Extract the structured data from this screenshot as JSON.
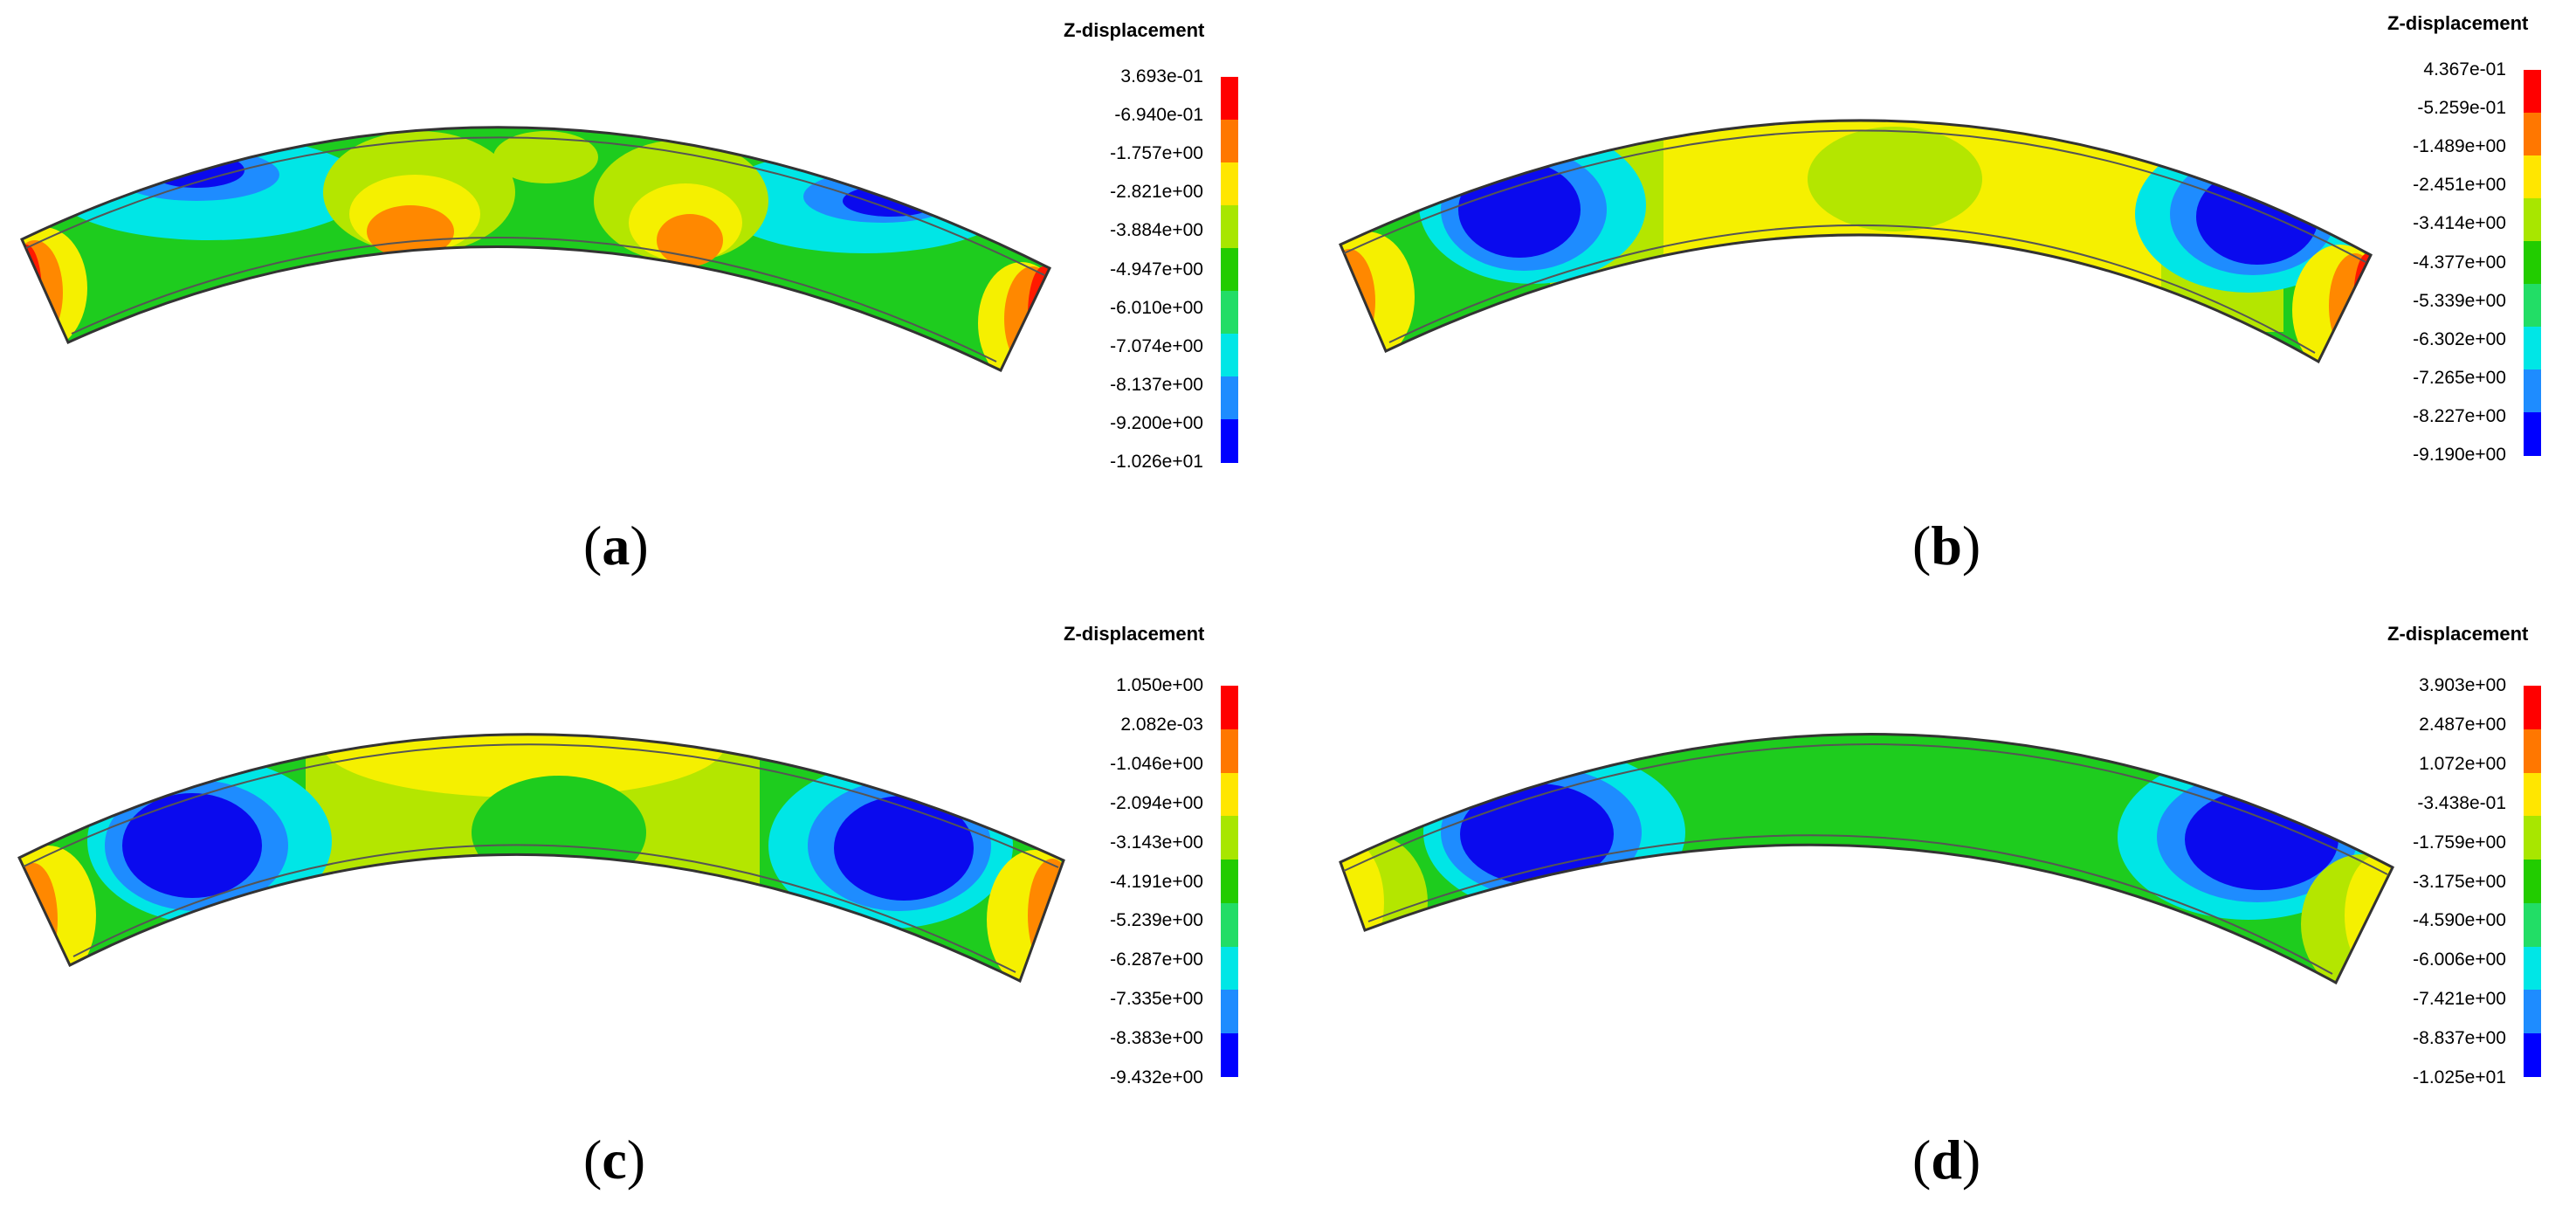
{
  "panels": [
    {
      "label_open": "(",
      "label_letter": "a",
      "label_close": ")",
      "legend_title": "Z-displacement",
      "legend_ticks": [
        "3.693e-01",
        "-6.940e-01",
        "-1.757e+00",
        "-2.821e+00",
        "-3.884e+00",
        "-4.947e+00",
        "-6.010e+00",
        "-7.074e+00",
        "-8.137e+00",
        "-9.200e+00",
        "-1.026e+01"
      ]
    },
    {
      "label_open": "(",
      "label_letter": "b",
      "label_close": ")",
      "legend_title": "Z-displacement",
      "legend_ticks": [
        "4.367e-01",
        "-5.259e-01",
        "-1.489e+00",
        "-2.451e+00",
        "-3.414e+00",
        "-4.377e+00",
        "-5.339e+00",
        "-6.302e+00",
        "-7.265e+00",
        "-8.227e+00",
        "-9.190e+00"
      ]
    },
    {
      "label_open": "(",
      "label_letter": "c",
      "label_close": ")",
      "legend_title": "Z-displacement",
      "legend_ticks": [
        "1.050e+00",
        "2.082e-03",
        "-1.046e+00",
        "-2.094e+00",
        "-3.143e+00",
        "-4.191e+00",
        "-5.239e+00",
        "-6.287e+00",
        "-7.335e+00",
        "-8.383e+00",
        "-9.432e+00"
      ]
    },
    {
      "label_open": "(",
      "label_letter": "d",
      "label_close": ")",
      "legend_title": "Z-displacement",
      "legend_ticks": [
        "3.903e+00",
        "2.487e+00",
        "1.072e+00",
        "-3.438e-01",
        "-1.759e+00",
        "-3.175e+00",
        "-4.590e+00",
        "-6.006e+00",
        "-7.421e+00",
        "-8.837e+00",
        "-1.025e+01"
      ]
    }
  ],
  "colorbar_colors": [
    "#ff0000",
    "#ff7700",
    "#ffe600",
    "#a8e600",
    "#22cc00",
    "#22dd66",
    "#00e6e6",
    "#1e8cff",
    "#0000ff"
  ],
  "field_colors": {
    "red": "#ff1a00",
    "orange": "#ff8800",
    "yellow": "#f5f000",
    "yellow_green": "#b4e600",
    "green": "#1ecc1e",
    "cyan": "#00e6e6",
    "light_blue": "#1e8cff",
    "blue": "#0a0aee"
  }
}
